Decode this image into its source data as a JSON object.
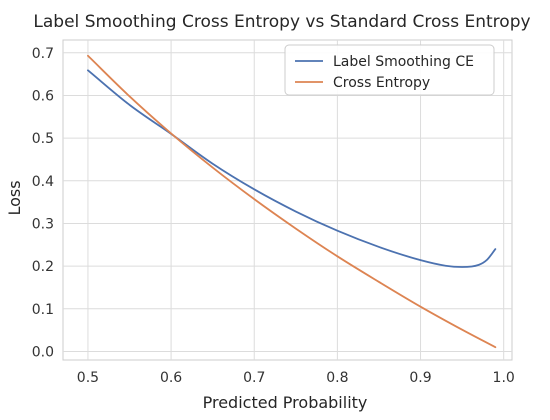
{
  "chart_data": {
    "type": "line",
    "title": "Label Smoothing Cross Entropy vs Standard Cross Entropy",
    "xlabel": "Predicted Probability",
    "ylabel": "Loss",
    "xlim": [
      0.47,
      1.01
    ],
    "ylim": [
      -0.02,
      0.73
    ],
    "x_ticks": [
      0.5,
      0.6,
      0.7,
      0.8,
      0.9,
      1.0
    ],
    "x_tick_labels": [
      "0.5",
      "0.6",
      "0.7",
      "0.8",
      "0.9",
      "1.0"
    ],
    "y_ticks": [
      0.0,
      0.1,
      0.2,
      0.3,
      0.4,
      0.5,
      0.6,
      0.7
    ],
    "y_tick_labels": [
      "0.0",
      "0.1",
      "0.2",
      "0.3",
      "0.4",
      "0.5",
      "0.6",
      "0.7"
    ],
    "grid": true,
    "legend_position": "top-right",
    "series": [
      {
        "name": "Label Smoothing CE",
        "color": "#4c72b0",
        "x": [
          0.5,
          0.55,
          0.6,
          0.65,
          0.7,
          0.75,
          0.8,
          0.85,
          0.9,
          0.93,
          0.95,
          0.97,
          0.98,
          0.99
        ],
        "y": [
          0.659,
          0.578,
          0.51,
          0.44,
          0.38,
          0.328,
          0.283,
          0.245,
          0.214,
          0.201,
          0.198,
          0.203,
          0.215,
          0.24
        ]
      },
      {
        "name": "Cross Entropy",
        "color": "#dd8452",
        "x": [
          0.5,
          0.55,
          0.6,
          0.65,
          0.7,
          0.75,
          0.8,
          0.85,
          0.9,
          0.95,
          0.99
        ],
        "y": [
          0.693,
          0.598,
          0.511,
          0.431,
          0.357,
          0.288,
          0.223,
          0.163,
          0.105,
          0.051,
          0.01
        ]
      }
    ]
  }
}
